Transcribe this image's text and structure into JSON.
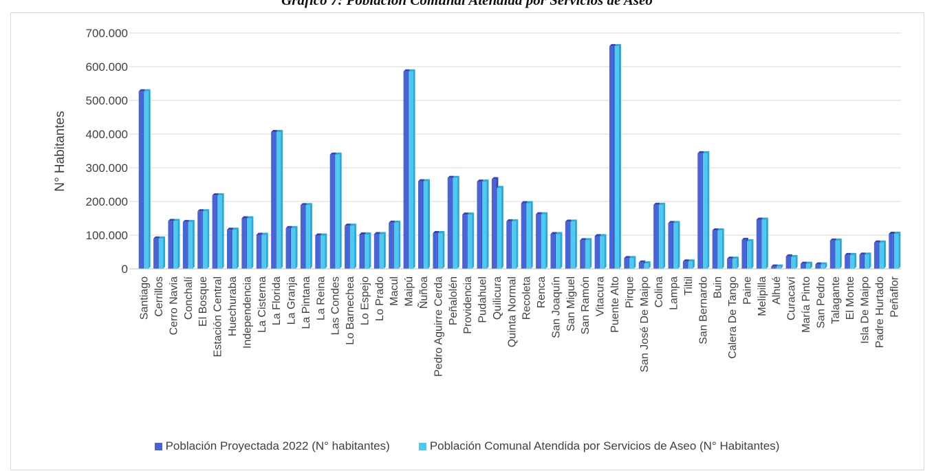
{
  "page": {
    "title": "Gráfico 7: Población Comunal Atendida por Servicios de Aseo"
  },
  "colors": {
    "series1": "#4a63d6",
    "series1_dark": "#2f45b5",
    "series2": "#4fc9ef",
    "series2_dark": "#2aa8d6",
    "grid": "#d9d9d9",
    "text": "#404040"
  },
  "chart_data": {
    "type": "bar",
    "title": "",
    "xlabel": "",
    "ylabel": "N° Habitantes",
    "ylim": [
      0,
      700000
    ],
    "yticks": [
      0,
      100000,
      200000,
      300000,
      400000,
      500000,
      600000,
      700000
    ],
    "ytick_labels": [
      "0",
      "100.000",
      "200.000",
      "300.000",
      "400.000",
      "500.000",
      "600.000",
      "700.000"
    ],
    "grid": true,
    "legend_position": "bottom",
    "categories": [
      "Santiago",
      "Cerrillos",
      "Cerro Navia",
      "Conchalí",
      "El Bosque",
      "Estación Central",
      "Huechuraba",
      "Independencia",
      "La Cisterna",
      "La Florida",
      "La Granja",
      "La Pintana",
      "La Reina",
      "Las Condes",
      "Lo Barnechea",
      "Lo Espejo",
      "Lo Prado",
      "Macul",
      "Maipú",
      "Ñuñoa",
      "Pedro Aguirre Cerda",
      "Peñalolén",
      "Providencia",
      "Pudahuel",
      "Quilicura",
      "Quinta Normal",
      "Recoleta",
      "Renca",
      "San Joaquín",
      "San Miguel",
      "San Ramón",
      "Vitacura",
      "Puente Alto",
      "Pirque",
      "San José De Maipo",
      "Colina",
      "Lampa",
      "Tiltil",
      "San Bernardo",
      "Buin",
      "Calera De Tango",
      "Paine",
      "Melipilla",
      "Alhué",
      "Curacaví",
      "María Pinto",
      "San Pedro",
      "Talagante",
      "El Monte",
      "Isla De Maipo",
      "Padre Hurtado",
      "Peñaflor"
    ],
    "series": [
      {
        "name": "Población Proyectada 2022  (N° habitantes)",
        "values": [
          527000,
          90000,
          142000,
          139000,
          171000,
          218000,
          116000,
          150000,
          101000,
          406000,
          121000,
          189000,
          99000,
          339000,
          128000,
          102000,
          103000,
          137000,
          586000,
          260000,
          106000,
          270000,
          161000,
          259000,
          266000,
          141000,
          195000,
          162000,
          103000,
          140000,
          85000,
          97000,
          661000,
          32000,
          19000,
          190000,
          136000,
          22000,
          343000,
          114000,
          30000,
          86000,
          146000,
          7000,
          37000,
          15000,
          13000,
          84000,
          41000,
          42000,
          78000,
          104000
        ]
      },
      {
        "name": "Población Comunal Atendida por Servicios de Aseo (N° Habitantes)",
        "values": [
          527000,
          90000,
          142000,
          139000,
          171000,
          218000,
          116000,
          150000,
          101000,
          406000,
          121000,
          189000,
          99000,
          339000,
          128000,
          102000,
          103000,
          137000,
          586000,
          260000,
          106000,
          270000,
          161000,
          259000,
          240000,
          141000,
          195000,
          162000,
          103000,
          140000,
          85000,
          97000,
          661000,
          32000,
          16000,
          190000,
          136000,
          22000,
          343000,
          114000,
          30000,
          82000,
          146000,
          7000,
          35000,
          15000,
          13000,
          84000,
          41000,
          42000,
          78000,
          104000
        ]
      }
    ]
  }
}
